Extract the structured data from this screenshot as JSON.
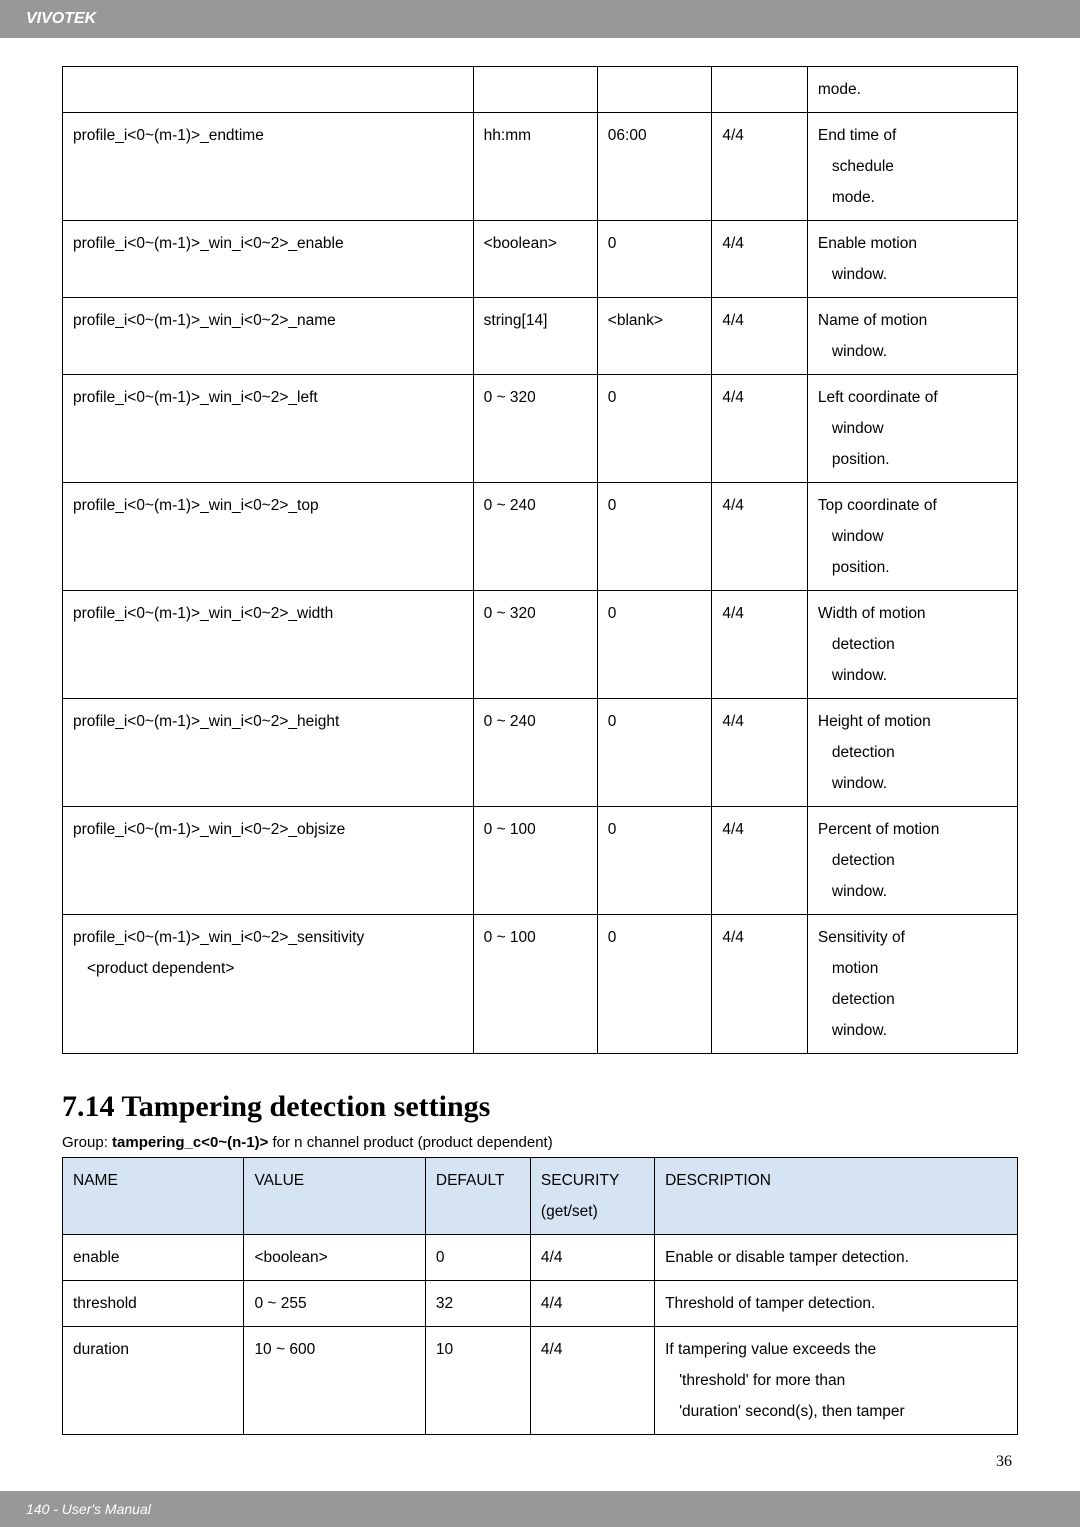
{
  "header": {
    "brand": "VIVOTEK"
  },
  "table1": {
    "rows": [
      {
        "name": "",
        "value": "",
        "default": "",
        "security": "",
        "desc": "mode."
      },
      {
        "name": "profile_i<0~(m-1)>_endtime",
        "value": "hh:mm",
        "default": "06:00",
        "security": "4/4",
        "desc": "End time of\nschedule\nmode."
      },
      {
        "name": "profile_i<0~(m-1)>_win_i<0~2>_enable",
        "value": "<boolean>",
        "default": "0",
        "security": "4/4",
        "desc": "Enable motion\nwindow."
      },
      {
        "name": "profile_i<0~(m-1)>_win_i<0~2>_name",
        "value": "string[14]",
        "default": "<blank>",
        "security": "4/4",
        "desc": "Name of motion\nwindow."
      },
      {
        "name": "profile_i<0~(m-1)>_win_i<0~2>_left",
        "value": "0 ~ 320",
        "default": "0",
        "security": "4/4",
        "desc": "Left coordinate of\nwindow\nposition."
      },
      {
        "name": "profile_i<0~(m-1)>_win_i<0~2>_top",
        "value": "0 ~ 240",
        "default": "0",
        "security": "4/4",
        "desc": "Top coordinate of\nwindow\nposition."
      },
      {
        "name": "profile_i<0~(m-1)>_win_i<0~2>_width",
        "value": "0 ~ 320",
        "default": "0",
        "security": "4/4",
        "desc": "Width of motion\ndetection\nwindow."
      },
      {
        "name": "profile_i<0~(m-1)>_win_i<0~2>_height",
        "value": "0 ~ 240",
        "default": "0",
        "security": "4/4",
        "desc": "Height of motion\ndetection\nwindow."
      },
      {
        "name": "profile_i<0~(m-1)>_win_i<0~2>_objsize",
        "value": "0 ~ 100",
        "default": "0",
        "security": "4/4",
        "desc": "Percent of motion\ndetection\nwindow."
      },
      {
        "name": "profile_i<0~(m-1)>_win_i<0~2>_sensitivity\n<product dependent>",
        "value": "0 ~ 100",
        "default": "0",
        "security": "4/4",
        "desc": "Sensitivity of\nmotion\ndetection\nwindow."
      }
    ]
  },
  "section": {
    "heading": "7.14 Tampering detection settings",
    "group_prefix": "Group: ",
    "group_bold": "tampering_c<0~(n-1)>",
    "group_suffix": " for n channel product (product dependent)"
  },
  "table2": {
    "headers": {
      "name": "NAME",
      "value": "VALUE",
      "default": "DEFAULT",
      "security": "SECURITY\n(get/set)",
      "desc": "DESCRIPTION"
    },
    "rows": [
      {
        "name": "enable",
        "value": "<boolean>",
        "default": "0",
        "security": "4/4",
        "desc": "Enable or disable tamper detection."
      },
      {
        "name": "threshold",
        "value": "0 ~ 255",
        "default": "32",
        "security": "4/4",
        "desc": "Threshold of tamper detection."
      },
      {
        "name": "duration",
        "value": "10 ~ 600",
        "default": "10",
        "security": "4/4",
        "desc": "If tampering value exceeds the\n'threshold' for more than\n'duration' second(s), then tamper"
      }
    ]
  },
  "page_number": "36",
  "footer": {
    "text": "140 - User's Manual"
  }
}
